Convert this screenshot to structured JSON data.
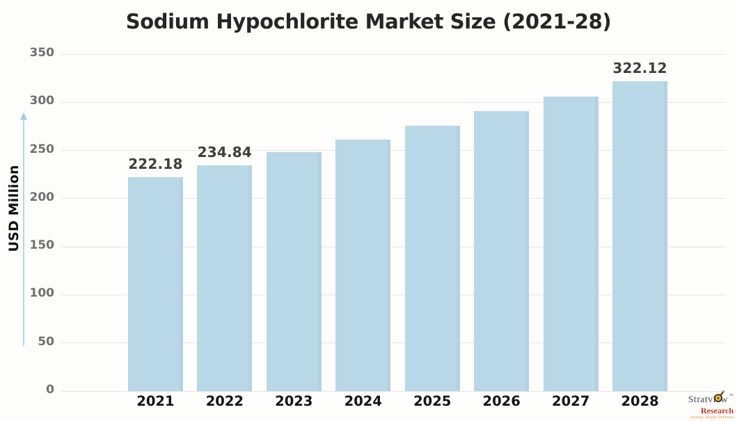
{
  "title": "Sodium Hypochlorite Market Size (2021-28)",
  "y_axis": {
    "label": "USD Million",
    "ticks": [
      "350",
      "300",
      "250",
      "200",
      "150",
      "100",
      "50",
      "0"
    ]
  },
  "x_axis": {
    "labels": [
      "2021",
      "2022",
      "2023",
      "2024",
      "2025",
      "2026",
      "2027",
      "2028"
    ]
  },
  "chart_data": {
    "type": "bar",
    "title": "Sodium Hypochlorite Market Size (2021-28)",
    "xlabel": "",
    "ylabel": "USD Million",
    "ylim": [
      0,
      350
    ],
    "grid": "horizontal",
    "legend": "none",
    "categories": [
      "2021",
      "2022",
      "2023",
      "2024",
      "2025",
      "2026",
      "2027",
      "2028"
    ],
    "values": [
      222.18,
      234.84,
      248.2,
      261.3,
      275.8,
      290.7,
      306.2,
      322.12
    ],
    "values_estimated_from_bar_height": [
      false,
      false,
      true,
      true,
      true,
      true,
      true,
      false
    ],
    "visible_value_labels": {
      "2021": "222.18",
      "2022": "234.84",
      "2028": "322.12"
    },
    "bar_color": "#b9d8e7"
  },
  "branding": {
    "name": "Stratview",
    "trademark": "TM",
    "division": "Research",
    "tagline": "Strategic Insights Delivered"
  },
  "colors": {
    "background": "#fdfdfc",
    "bar": "#b9d8e7",
    "gridline": "#e4e4e4",
    "tick_label": "#6f6f6f",
    "title": "#262626",
    "x_label": "#141414",
    "value_label": "#3e3e3e",
    "axis_arrow": "#a5cde0",
    "brand_gray": "#4b4b54",
    "brand_red": "#c63d1f",
    "brand_orange": "#e8822d"
  }
}
